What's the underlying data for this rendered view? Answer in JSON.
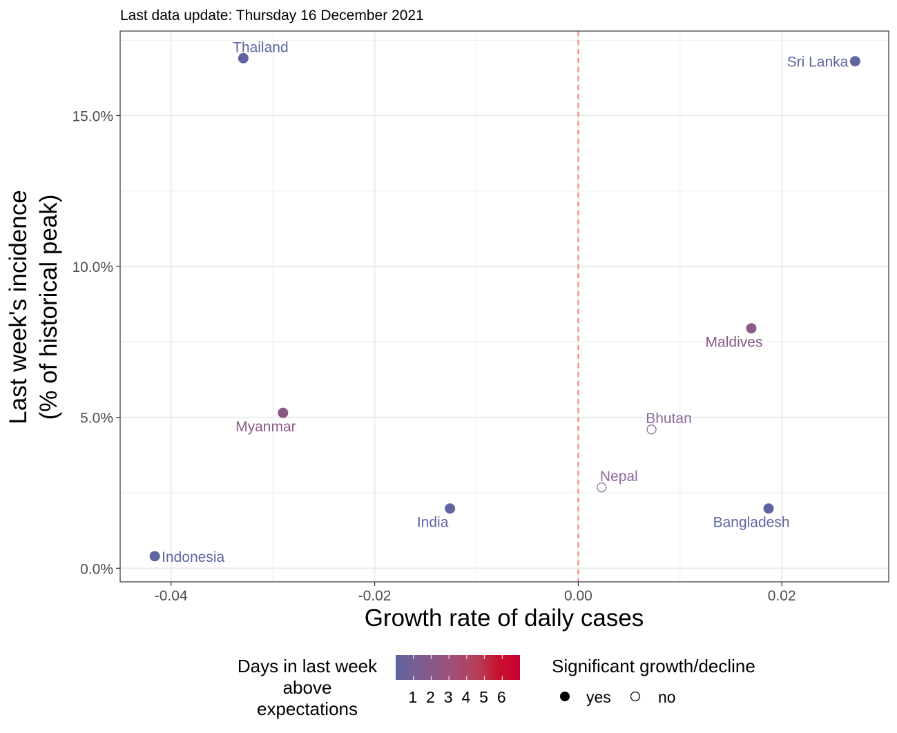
{
  "chart_data": {
    "type": "scatter",
    "subtitle": "Last data update: Thursday 16 December 2021",
    "xlabel": "Growth rate of daily cases",
    "ylabel_line1": "Last week's incidence",
    "ylabel_line2": "(% of historical peak)",
    "xlim": [
      -0.045,
      0.0305
    ],
    "ylim": [
      -0.0045,
      0.178
    ],
    "x_ticks": [
      {
        "value": -0.04,
        "label": "-0.04"
      },
      {
        "value": -0.02,
        "label": "-0.02"
      },
      {
        "value": 0.0,
        "label": "0.00"
      },
      {
        "value": 0.02,
        "label": "0.02"
      }
    ],
    "x_minor_ticks": [
      -0.03,
      -0.01,
      0.01
    ],
    "y_ticks": [
      {
        "value": 0.0,
        "label": "0.0%"
      },
      {
        "value": 0.05,
        "label": "5.0%"
      },
      {
        "value": 0.1,
        "label": "10.0%"
      },
      {
        "value": 0.15,
        "label": "15.0%"
      }
    ],
    "y_minor_ticks": [
      0.025,
      0.075,
      0.125,
      0.175
    ],
    "reference_line": {
      "x": 0.0,
      "color": "#f8766d",
      "style": "dashed"
    },
    "grid": true,
    "points": [
      {
        "country": "Thailand",
        "x": -0.0329,
        "y": 0.169,
        "days": 1,
        "significant": true,
        "label_pos": "above"
      },
      {
        "country": "Sri Lanka",
        "x": 0.0272,
        "y": 0.168,
        "days": 1,
        "significant": true,
        "label_pos": "left"
      },
      {
        "country": "Maldives",
        "x": 0.017,
        "y": 0.0795,
        "days": 2,
        "significant": true,
        "label_pos": "below"
      },
      {
        "country": "Myanmar",
        "x": -0.029,
        "y": 0.0515,
        "days": 2,
        "significant": true,
        "label_pos": "below"
      },
      {
        "country": "Bhutan",
        "x": 0.0072,
        "y": 0.046,
        "days": 1,
        "significant": false,
        "label_pos": "above"
      },
      {
        "country": "Nepal",
        "x": 0.0023,
        "y": 0.0268,
        "days": 1,
        "significant": false,
        "label_pos": "above"
      },
      {
        "country": "India",
        "x": -0.0126,
        "y": 0.0198,
        "days": 1,
        "significant": true,
        "label_pos": "below"
      },
      {
        "country": "Bangladesh",
        "x": 0.0187,
        "y": 0.0198,
        "days": 1,
        "significant": true,
        "label_pos": "below"
      },
      {
        "country": "Indonesia",
        "x": -0.0416,
        "y": 0.004,
        "days": 1,
        "significant": true,
        "label_pos": "right"
      }
    ],
    "color_scale": {
      "title_lines": [
        "Days in last week",
        "above",
        "expectations"
      ],
      "labels": [
        "1",
        "2",
        "3",
        "4",
        "5",
        "6"
      ],
      "colors": [
        "#5e65a0",
        "#785f92",
        "#8e5784",
        "#a54c70",
        "#b83c58",
        "#c8102e",
        "#cc0033"
      ]
    },
    "shape_legend": {
      "title": "Significant growth/decline",
      "items": [
        {
          "label": "yes",
          "filled": true
        },
        {
          "label": "no",
          "filled": false
        }
      ]
    },
    "colors": {
      "days_1": "#5e65a0",
      "days_2": "#8a5a86",
      "open_point": "#8a6a9a",
      "grid": "#ebebeb",
      "axis_text": "#4d4d4d"
    }
  }
}
